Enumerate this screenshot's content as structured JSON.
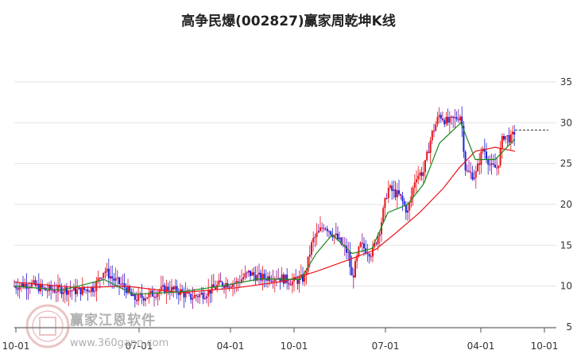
{
  "chart_data": {
    "type": "candlestick",
    "title": "高争民爆(002827)赢家周乾坤K线",
    "y_axis": {
      "ticks": [
        35,
        30,
        25,
        20,
        15,
        10,
        5
      ],
      "range": [
        5,
        38
      ],
      "position": "right"
    },
    "x_axis": {
      "ticks": [
        "10-01",
        "07-01",
        "04-01",
        "10-01",
        "07-01",
        "04-01",
        "10-01"
      ]
    },
    "grid": true,
    "reference_line": 29.1,
    "colors": {
      "up": "#e8161b",
      "down": "#1a23d6",
      "neutral": "#8e0b8e",
      "ma_short": "#1c8a1c",
      "ma_long": "#e8161b",
      "ref_line": "#333333"
    },
    "series_price": [
      {
        "x": 0,
        "y": 10.0
      },
      {
        "x": 20,
        "y": 10.3
      },
      {
        "x": 40,
        "y": 9.5
      },
      {
        "x": 60,
        "y": 9.6
      },
      {
        "x": 80,
        "y": 9.4
      },
      {
        "x": 100,
        "y": 9.8
      },
      {
        "x": 113,
        "y": 12.0
      },
      {
        "x": 125,
        "y": 10.8
      },
      {
        "x": 140,
        "y": 9.8
      },
      {
        "x": 150,
        "y": 8.4
      },
      {
        "x": 170,
        "y": 8.9
      },
      {
        "x": 190,
        "y": 9.7
      },
      {
        "x": 210,
        "y": 9.3
      },
      {
        "x": 220,
        "y": 8.6
      },
      {
        "x": 240,
        "y": 9.1
      },
      {
        "x": 260,
        "y": 10.3
      },
      {
        "x": 280,
        "y": 10.4
      },
      {
        "x": 295,
        "y": 11.6
      },
      {
        "x": 310,
        "y": 11.0
      },
      {
        "x": 330,
        "y": 11.2
      },
      {
        "x": 350,
        "y": 10.5
      },
      {
        "x": 365,
        "y": 11.0
      },
      {
        "x": 375,
        "y": 15.5
      },
      {
        "x": 390,
        "y": 17.5
      },
      {
        "x": 405,
        "y": 16.0
      },
      {
        "x": 420,
        "y": 14.0
      },
      {
        "x": 425,
        "y": 10.8
      },
      {
        "x": 435,
        "y": 15.0
      },
      {
        "x": 450,
        "y": 14.0
      },
      {
        "x": 460,
        "y": 17.0
      },
      {
        "x": 470,
        "y": 22.0
      },
      {
        "x": 485,
        "y": 21.0
      },
      {
        "x": 495,
        "y": 19.0
      },
      {
        "x": 505,
        "y": 23.5
      },
      {
        "x": 515,
        "y": 24.0
      },
      {
        "x": 525,
        "y": 28.5
      },
      {
        "x": 535,
        "y": 31.0
      },
      {
        "x": 545,
        "y": 30.0
      },
      {
        "x": 555,
        "y": 30.5
      },
      {
        "x": 562,
        "y": 31.0
      },
      {
        "x": 568,
        "y": 24.0
      },
      {
        "x": 580,
        "y": 23.5
      },
      {
        "x": 590,
        "y": 27.0
      },
      {
        "x": 600,
        "y": 24.5
      },
      {
        "x": 608,
        "y": 24.5
      },
      {
        "x": 615,
        "y": 28.5
      },
      {
        "x": 625,
        "y": 28.0
      },
      {
        "x": 630,
        "y": 29.0
      }
    ],
    "series_ma_short": [
      {
        "x": 0,
        "y": 10.0
      },
      {
        "x": 60,
        "y": 9.5
      },
      {
        "x": 113,
        "y": 10.8
      },
      {
        "x": 150,
        "y": 9.0
      },
      {
        "x": 210,
        "y": 9.3
      },
      {
        "x": 260,
        "y": 10.0
      },
      {
        "x": 310,
        "y": 10.9
      },
      {
        "x": 360,
        "y": 10.8
      },
      {
        "x": 380,
        "y": 14.0
      },
      {
        "x": 400,
        "y": 16.3
      },
      {
        "x": 425,
        "y": 14.0
      },
      {
        "x": 450,
        "y": 14.6
      },
      {
        "x": 470,
        "y": 19.0
      },
      {
        "x": 495,
        "y": 20.0
      },
      {
        "x": 515,
        "y": 22.5
      },
      {
        "x": 535,
        "y": 27.5
      },
      {
        "x": 562,
        "y": 30.0
      },
      {
        "x": 580,
        "y": 25.5
      },
      {
        "x": 605,
        "y": 25.5
      },
      {
        "x": 630,
        "y": 28.0
      }
    ],
    "series_ma_long": [
      {
        "x": 0,
        "y": 10.5
      },
      {
        "x": 80,
        "y": 9.8
      },
      {
        "x": 140,
        "y": 10.0
      },
      {
        "x": 210,
        "y": 9.2
      },
      {
        "x": 280,
        "y": 9.8
      },
      {
        "x": 340,
        "y": 10.6
      },
      {
        "x": 380,
        "y": 11.8
      },
      {
        "x": 420,
        "y": 13.2
      },
      {
        "x": 455,
        "y": 14.5
      },
      {
        "x": 480,
        "y": 16.5
      },
      {
        "x": 510,
        "y": 19.0
      },
      {
        "x": 540,
        "y": 22.0
      },
      {
        "x": 560,
        "y": 24.5
      },
      {
        "x": 580,
        "y": 26.5
      },
      {
        "x": 605,
        "y": 27.0
      },
      {
        "x": 630,
        "y": 26.5
      }
    ]
  },
  "watermark": {
    "brand": "赢家江恩软件",
    "url": "www.360gann.com"
  }
}
